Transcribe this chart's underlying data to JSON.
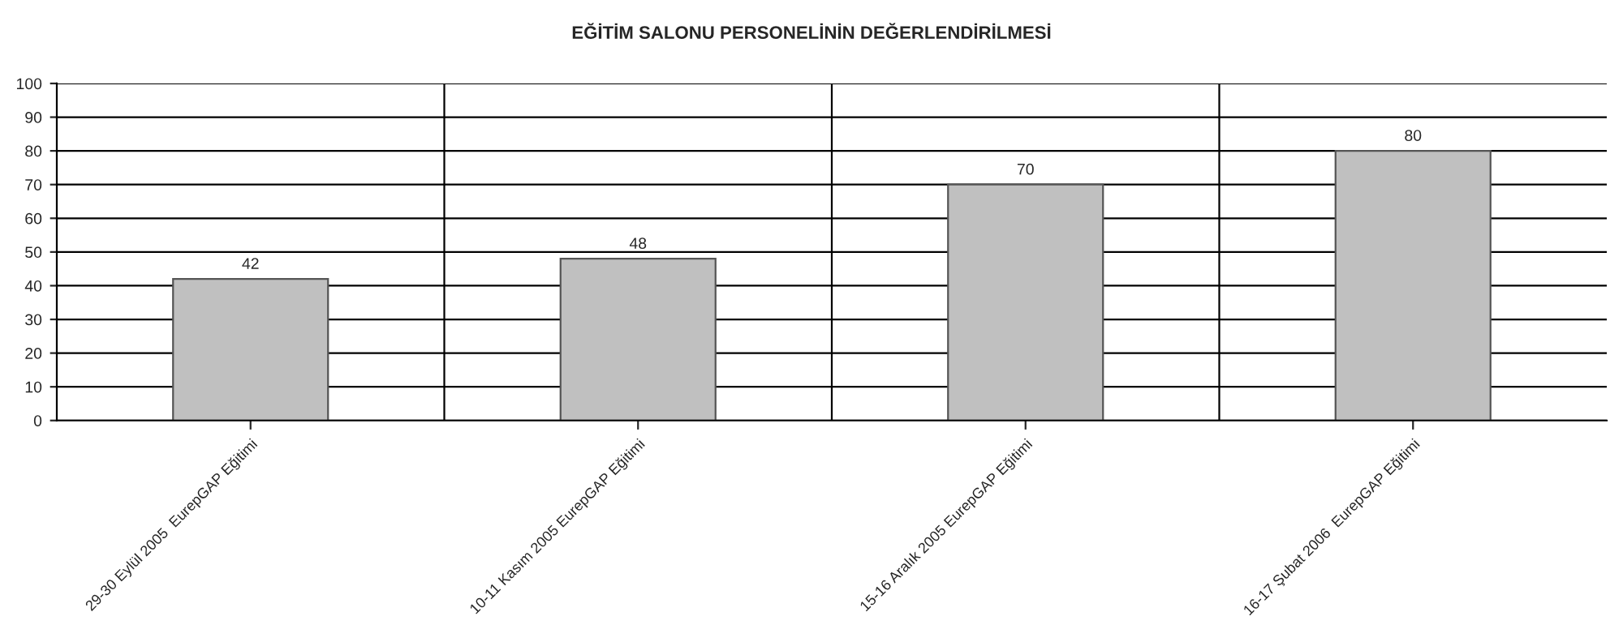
{
  "chart_data": {
    "type": "bar",
    "title": "EĞİTİM SALONU PERSONELİNİN DEĞERLENDİRİLMESİ",
    "categories": [
      "29-30 Eylül 2005  EurepGAP Eğitimi",
      "10-11 Kasım 2005 EurepGAP Eğitimi",
      "15-16 Aralık 2005 EurepGAP Eğitimi",
      "16-17 Şubat 2006  EurepGAP Eğitimi"
    ],
    "values": [
      42,
      48,
      70,
      80
    ],
    "color": "#c0c0c0",
    "ylim": [
      0,
      100
    ],
    "yticks": [
      0,
      10,
      20,
      30,
      40,
      50,
      60,
      70,
      80,
      90,
      100
    ],
    "grid": true,
    "data_labels": true,
    "legend": false
  }
}
